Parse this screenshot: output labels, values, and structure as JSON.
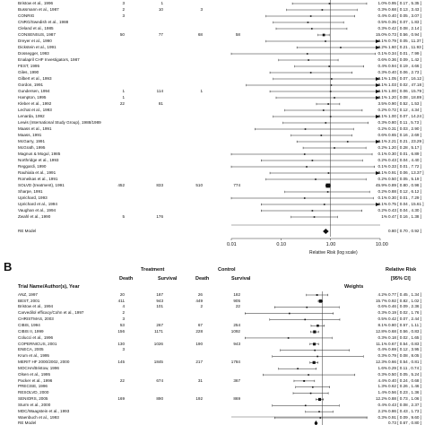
{
  "panelA": {
    "label": "",
    "xticks": [
      "0.01",
      "0.10",
      "1.00",
      "10.00"
    ],
    "xlabel": "Relative Risk (log scale)",
    "model_label": "RE Model",
    "model_ci": "0.80 [ 0.70 , 0.92 ]",
    "studies": [
      {
        "name": "Bristow et al., 1996",
        "a": "3",
        "b": "1",
        "c": "",
        "d": "",
        "w": "1.0%",
        "ci": "0.95 [ 0.17 , 5.35 ]"
      },
      {
        "name": "Bussmann et al., 1987",
        "a": "2",
        "b": "10",
        "c": "3",
        "d": "",
        "w": "0.3%",
        "ci": "0.68 [ 0.13 , 3.43 ]"
      },
      {
        "name": "CONRIG",
        "a": "3",
        "b": "",
        "c": "",
        "d": "",
        "w": "0.4%",
        "ci": "0.40 [ 0.05 , 3.07 ]"
      },
      {
        "name": "CNRG/Swedish et al., 1988",
        "a": "",
        "b": "",
        "c": "",
        "d": "",
        "w": "0.5%",
        "ci": "0.35 [ 0.07 , 1.83 ]"
      },
      {
        "name": "Cleland et al., 1985",
        "a": "",
        "b": "",
        "c": "",
        "d": "",
        "w": "0.3%",
        "ci": "0.42 [ 0.08 , 2.14 ]"
      },
      {
        "name": "CONSENSUS, 1987",
        "a": "50",
        "b": "77",
        "c": "68",
        "d": "58",
        "w": "15.0%",
        "ci": "0.73 [ 0.56 , 0.94 ]"
      },
      {
        "name": "Dreyer et al., 1990",
        "a": "",
        "b": "",
        "c": "",
        "d": "",
        "w": "0.1%",
        "ci": "0.79 [ 0.05 , 11.37 ]"
      },
      {
        "name": "Dickstein et al., 1991",
        "a": "",
        "b": "",
        "c": "",
        "d": "",
        "w": "0.2%",
        "ci": "1.60 [ 0.21 , 11.93 ]"
      },
      {
        "name": "Dossegger, 1993",
        "a": "",
        "b": "",
        "c": "",
        "d": "",
        "w": "0.1%",
        "ci": "0.34 [ 0.01 , 7.99 ]"
      },
      {
        "name": "Enalapril CHF Investigators, 1987",
        "a": "",
        "b": "",
        "c": "",
        "d": "",
        "w": "0.6%",
        "ci": "0.36 [ 0.09 , 1.42 ]"
      },
      {
        "name": "FEST, 1995",
        "a": "",
        "b": "",
        "c": "",
        "d": "",
        "w": "0.4%",
        "ci": "0.94 [ 0.19 , 4.66 ]"
      },
      {
        "name": "Giles, 1990",
        "a": "",
        "b": "",
        "c": "",
        "d": "",
        "w": "0.3%",
        "ci": "0.40 [ 0.06 , 2.73 ]"
      },
      {
        "name": "Gilbert et al., 1993",
        "a": "",
        "b": "",
        "c": "",
        "d": "",
        "w": "0.1%",
        "ci": "1.05 [ 0.07 , 16.12 ]"
      },
      {
        "name": "Gordon, 1991",
        "a": "",
        "b": "",
        "c": "",
        "d": "",
        "w": "0.1%",
        "ci": "1.03 [ 0.02 , 47.18 ]"
      },
      {
        "name": "Gundersen, 1994",
        "a": "1",
        "b": "114",
        "c": "1",
        "d": "",
        "w": "0.1%",
        "ci": "1.00 [ 0.06 , 15.79 ]"
      },
      {
        "name": "Hampton, 1995",
        "a": "1",
        "b": "",
        "c": "",
        "d": "",
        "w": "0.1%",
        "ci": "1.20 [ 0.08 , 18.89 ]"
      },
      {
        "name": "Kleber et al., 1992",
        "a": "22",
        "b": "81",
        "c": "",
        "d": "",
        "w": "3.5%",
        "ci": "0.90 [ 0.52 , 1.53 ]"
      },
      {
        "name": "Lechat et al., 1993",
        "a": "",
        "b": "",
        "c": "",
        "d": "",
        "w": "0.2%",
        "ci": "0.72 [ 0.12 , 4.34 ]"
      },
      {
        "name": "Lenarda, 1992",
        "a": "",
        "b": "",
        "c": "",
        "d": "",
        "w": "0.1%",
        "ci": "1.00 [ 0.07 , 14.24 ]"
      },
      {
        "name": "Lewis (International Study Group), 1988/1989",
        "a": "",
        "b": "",
        "c": "",
        "d": "",
        "w": "0.3%",
        "ci": "0.80 [ 0.11 , 5.73 ]"
      },
      {
        "name": "Maass et al., 1991",
        "a": "",
        "b": "",
        "c": "",
        "d": "",
        "w": "0.2%",
        "ci": "0.31 [ 0.03 , 2.90 ]"
      },
      {
        "name": "Maass, 1991",
        "a": "",
        "b": "",
        "c": "",
        "d": "",
        "w": "0.6%",
        "ci": "0.65 [ 0.16 , 2.69 ]"
      },
      {
        "name": "McGarry, 1991",
        "a": "",
        "b": "",
        "c": "",
        "d": "",
        "w": "0.1%",
        "ci": "2.21 [ 0.21 , 23.29 ]"
      },
      {
        "name": "McGrath, 1995",
        "a": "",
        "b": "",
        "c": "",
        "d": "",
        "w": "0.2%",
        "ci": "1.20 [ 0.28 , 5.17 ]"
      },
      {
        "name": "Magnus & Mogul, 1985",
        "a": "",
        "b": "",
        "c": "",
        "d": "",
        "w": "0.1%",
        "ci": "0.30 [ 0.01 , 6.89 ]"
      },
      {
        "name": "Northridge et al., 1993",
        "a": "",
        "b": "",
        "c": "",
        "d": "",
        "w": "0.2%",
        "ci": "0.43 [ 0.04 , 4.40 ]"
      },
      {
        "name": "Reggardi, 1990",
        "a": "",
        "b": "",
        "c": "",
        "d": "",
        "w": "0.1%",
        "ci": "0.33 [ 0.01 , 7.72 ]"
      },
      {
        "name": "Rauhiala et al., 1991",
        "a": "",
        "b": "",
        "c": "",
        "d": "",
        "w": "0.1%",
        "ci": "0.91 [ 0.06 , 13.37 ]"
      },
      {
        "name": "Romeikas et al., 1991",
        "a": "",
        "b": "",
        "c": "",
        "d": "",
        "w": "0.2%",
        "ci": "0.50 [ 0.05 , 5.19 ]"
      },
      {
        "name": "SOLVD (treatment), 1991",
        "a": "452",
        "b": "833",
        "c": "510",
        "d": "774",
        "w": "45.9%",
        "ci": "0.89 [ 0.80 , 0.98 ]"
      },
      {
        "name": "Sharpe, 1991",
        "a": "",
        "b": "",
        "c": "",
        "d": "",
        "w": "0.2%",
        "ci": "0.88 [ 0.12 , 6.12 ]"
      },
      {
        "name": "Uprichard, 1993",
        "a": "",
        "b": "",
        "c": "",
        "d": "",
        "w": "0.1%",
        "ci": "0.30 [ 0.01 , 7.29 ]"
      },
      {
        "name": "Uprichard et al., 1994",
        "a": "",
        "b": "",
        "c": "",
        "d": "",
        "w": "0.1%",
        "ci": "0.75 [ 0.04 , 15.61 ]"
      },
      {
        "name": "Vaughan et al., 1994",
        "a": "",
        "b": "",
        "c": "",
        "d": "",
        "w": "0.2%",
        "ci": "0.43 [ 0.04 , 4.30 ]"
      },
      {
        "name": "Zwahl et al., 1990",
        "a": "5",
        "b": "176",
        "c": "",
        "d": "",
        "w": "1%",
        "ci": "0.47 [ 0.16 , 1.38 ]"
      }
    ]
  },
  "panelB": {
    "label": "B",
    "headers": {
      "trial": "Trial Name/Author(s), Year",
      "treatment": "Treatment",
      "control": "Control",
      "death": "Death",
      "survival": "Survival",
      "weights": "Weights",
      "rr": "Relative Risk",
      "ci95": "[95% CI]"
    },
    "model_label": "RE Model",
    "model_ci": "0.73 [ 0.67 , 0.80 ]",
    "studies": [
      {
        "name": "ANZ, 1997",
        "a": "20",
        "b": "187",
        "c": "26",
        "d": "182",
        "w": "4.2%",
        "ci": "0.77 [ 0.45 , 1.34 ]"
      },
      {
        "name": "BEST, 2001",
        "a": "411",
        "b": "943",
        "c": "449",
        "d": "905",
        "w": "15.7%",
        "ci": "0.92 [ 0.82 , 1.02 ]"
      },
      {
        "name": "Bristow et al., 1994",
        "a": "4",
        "b": "101",
        "c": "2",
        "d": "22",
        "w": "0.6%",
        "ci": "0.46 [ 0.09 , 2.36 ]"
      },
      {
        "name": "Carvedilol efficacy/Cohn et al., 1997",
        "a": "2",
        "b": "",
        "c": "",
        "d": "",
        "w": "0.3%",
        "ci": "0.19 [ 0.02 , 1.76 ]"
      },
      {
        "name": "CHRISTMAS, 2003",
        "a": "3",
        "b": "",
        "c": "",
        "d": "",
        "w": "0.5%",
        "ci": "0.42 [ 0.07 , 2.44 ]"
      },
      {
        "name": "CIBIS, 1994",
        "a": "53",
        "b": "267",
        "c": "67",
        "d": "254",
        "w": "8.1%",
        "ci": "0.80 [ 0.57 , 1.11 ]"
      },
      {
        "name": "CIBIS II, 1999",
        "a": "156",
        "b": "1171",
        "c": "228",
        "d": "1092",
        "w": "12.8%",
        "ci": "0.68 [ 0.56 , 0.83 ]"
      },
      {
        "name": "Colucci et al., 1996",
        "a": "",
        "b": "",
        "c": "",
        "d": "",
        "w": "0.3%",
        "ci": "0.18 [ 0.02 , 1.65 ]"
      },
      {
        "name": "COPERNICUS, 2001",
        "a": "130",
        "b": "1026",
        "c": "190",
        "d": "943",
        "w": "11.1%",
        "ci": "0.67 [ 0.54 , 0.83 ]"
      },
      {
        "name": "ENECA, 2005",
        "a": "3",
        "b": "",
        "c": "",
        "d": "",
        "w": "0.4%",
        "ci": "0.69 [ 0.12 , 3.95 ]"
      },
      {
        "name": "Krum et al., 1995",
        "a": "",
        "b": "",
        "c": "",
        "d": "",
        "w": "0.3%",
        "ci": "0.79 [ 0.08 , 8.05 ]"
      },
      {
        "name": "MERIT HF 2000/2002, 2000",
        "a": "145",
        "b": "1845",
        "c": "217",
        "d": "1784",
        "w": "12.3%",
        "ci": "0.66 [ 0.54 , 0.81 ]"
      },
      {
        "name": "MOCHA/Bristow, 1996",
        "a": "",
        "b": "",
        "c": "",
        "d": "",
        "w": "1.6%",
        "ci": "0.29 [ 0.11 , 0.74 ]"
      },
      {
        "name": "Olsen et al., 1995",
        "a": "",
        "b": "",
        "c": "",
        "d": "",
        "w": "0.3%",
        "ci": "0.50 [ 0.05 , 5.24 ]"
      },
      {
        "name": "Packer et al., 1996",
        "a": "22",
        "b": "674",
        "c": "31",
        "d": "367",
        "w": "4.4%",
        "ci": "0.40 [ 0.24 , 0.68 ]"
      },
      {
        "name": "PRECISE, 1996",
        "a": "",
        "b": "",
        "c": "",
        "d": "",
        "w": "1.3%",
        "ci": "0.62 [ 0.26 , 1.46 ]"
      },
      {
        "name": "RESOLVD, 2000",
        "a": "",
        "b": "",
        "c": "",
        "d": "",
        "w": "1.4%",
        "ci": "0.56 [ 0.23 , 1.36 ]"
      },
      {
        "name": "SENIORS, 2005",
        "a": "169",
        "b": "890",
        "c": "192",
        "d": "869",
        "w": "12.2%",
        "ci": "0.88 [ 0.73 , 1.06 ]"
      },
      {
        "name": "Sturm et al., 2000",
        "a": "",
        "b": "",
        "c": "",
        "d": "",
        "w": "0.4%",
        "ci": "0.43 [ 0.08 , 2.37 ]"
      },
      {
        "name": "MDC/Waagstein et al., 1993",
        "a": "",
        "b": "",
        "c": "",
        "d": "",
        "w": "2.2%",
        "ci": "0.86 [ 0.43 , 1.73 ]"
      },
      {
        "name": "Waenbuch et al., 1993",
        "a": "",
        "b": "",
        "c": "",
        "d": "",
        "w": "0.3%",
        "ci": "0.91 [ 0.09 , 9.60 ]"
      }
    ]
  },
  "chart_data": [
    {
      "type": "forest",
      "panel": "A",
      "xlabel": "Relative Risk (log scale)",
      "xscale": "log",
      "xlim": [
        0.01,
        10
      ],
      "xticks": [
        0.01,
        0.1,
        1,
        10
      ],
      "rr": [
        0.95,
        0.68,
        0.4,
        0.35,
        0.42,
        0.73,
        0.79,
        1.6,
        0.34,
        0.36,
        0.94,
        0.4,
        1.05,
        1.03,
        1.0,
        1.2,
        0.9,
        0.72,
        1.0,
        0.8,
        0.31,
        0.65,
        2.21,
        1.2,
        0.3,
        0.43,
        0.33,
        0.91,
        0.5,
        0.89,
        0.88,
        0.3,
        0.75,
        0.43,
        0.47
      ],
      "lo": [
        0.17,
        0.13,
        0.05,
        0.07,
        0.08,
        0.56,
        0.05,
        0.21,
        0.01,
        0.09,
        0.19,
        0.06,
        0.07,
        0.02,
        0.06,
        0.08,
        0.52,
        0.12,
        0.07,
        0.11,
        0.03,
        0.16,
        0.21,
        0.28,
        0.01,
        0.04,
        0.01,
        0.06,
        0.05,
        0.8,
        0.12,
        0.01,
        0.04,
        0.04,
        0.16
      ],
      "hi": [
        5.35,
        3.43,
        3.07,
        1.83,
        2.14,
        0.94,
        11.37,
        11.93,
        7.99,
        1.42,
        4.66,
        2.73,
        16.12,
        47.18,
        15.79,
        18.89,
        1.53,
        4.34,
        14.24,
        5.73,
        2.9,
        2.69,
        23.29,
        5.17,
        6.89,
        4.4,
        7.72,
        13.37,
        5.19,
        0.98,
        6.12,
        7.29,
        15.61,
        4.3,
        1.38
      ],
      "weights": [
        1.0,
        0.3,
        0.4,
        0.5,
        0.3,
        15.0,
        0.1,
        0.2,
        0.1,
        0.6,
        0.4,
        0.3,
        0.1,
        0.1,
        0.1,
        0.1,
        3.5,
        0.2,
        0.1,
        0.3,
        0.2,
        0.6,
        0.1,
        0.2,
        0.1,
        0.2,
        0.1,
        0.1,
        0.2,
        45.9,
        0.2,
        0.1,
        0.1,
        0.2,
        1.0
      ],
      "summary": {
        "rr": 0.8,
        "lo": 0.7,
        "hi": 0.92
      }
    },
    {
      "type": "forest",
      "panel": "B",
      "xscale": "log",
      "xlim": [
        0.01,
        10
      ],
      "rr": [
        0.77,
        0.92,
        0.46,
        0.19,
        0.42,
        0.8,
        0.68,
        0.18,
        0.67,
        0.69,
        0.79,
        0.66,
        0.29,
        0.5,
        0.4,
        0.62,
        0.56,
        0.88,
        0.43,
        0.86,
        0.91
      ],
      "lo": [
        0.45,
        0.82,
        0.09,
        0.02,
        0.07,
        0.57,
        0.56,
        0.02,
        0.54,
        0.12,
        0.08,
        0.54,
        0.11,
        0.05,
        0.24,
        0.26,
        0.23,
        0.73,
        0.08,
        0.43,
        0.09
      ],
      "hi": [
        1.34,
        1.02,
        2.36,
        1.76,
        2.44,
        1.11,
        0.83,
        1.65,
        0.83,
        3.95,
        8.05,
        0.81,
        0.74,
        5.24,
        0.68,
        1.46,
        1.36,
        1.06,
        2.37,
        1.73,
        9.6
      ],
      "weights": [
        4.2,
        15.7,
        0.6,
        0.3,
        0.5,
        8.1,
        12.8,
        0.3,
        11.1,
        0.4,
        0.3,
        12.3,
        1.6,
        0.3,
        4.4,
        1.3,
        1.4,
        12.2,
        0.4,
        2.2,
        0.3
      ],
      "summary": {
        "rr": 0.73,
        "lo": 0.67,
        "hi": 0.8
      }
    }
  ]
}
